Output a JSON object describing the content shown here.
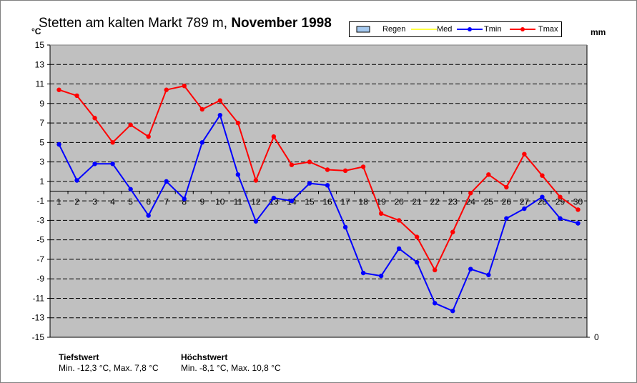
{
  "title": {
    "station": "Stetten am kalten Markt",
    "altitude": "789 m,",
    "period": "November 1998"
  },
  "units": {
    "left": "°C",
    "right": "mm"
  },
  "legend": [
    {
      "label": "Regen",
      "color": "#a6caf0"
    },
    {
      "label": "Med",
      "color": "#ffff00"
    },
    {
      "label": "Tmin",
      "color": "#0000ff"
    },
    {
      "label": "Tmax",
      "color": "#ff0000"
    }
  ],
  "footer": {
    "min_heading": "Tiefstwert",
    "min_text": "Min. -12,3 °C, Max. 7,8 °C",
    "max_heading": "Höchstwert",
    "max_text": "Min. -8,1 °C, Max. 10,8 °C"
  },
  "chart_data": {
    "type": "line",
    "x": [
      1,
      2,
      3,
      4,
      5,
      6,
      7,
      8,
      9,
      10,
      11,
      12,
      13,
      14,
      15,
      16,
      17,
      18,
      19,
      20,
      21,
      22,
      23,
      24,
      25,
      26,
      27,
      28,
      29,
      30
    ],
    "ylim": [
      -15,
      15
    ],
    "yticks": [
      15,
      13,
      11,
      9,
      7,
      5,
      3,
      1,
      -1,
      -3,
      -5,
      -7,
      -9,
      -11,
      -13,
      -15
    ],
    "y2_ticks": [
      "0"
    ],
    "grid": true,
    "background": "#c0c0c0",
    "series": [
      {
        "name": "Tmin",
        "color": "#0000ff",
        "values": [
          4.8,
          1.1,
          2.8,
          2.8,
          0.2,
          -2.5,
          1.0,
          -0.8,
          5.0,
          7.8,
          1.7,
          -3.1,
          -0.7,
          -1.0,
          0.8,
          0.6,
          -3.7,
          -8.4,
          -8.7,
          -5.9,
          -7.3,
          -11.5,
          -12.3,
          -8.0,
          -8.6,
          -2.8,
          -1.8,
          -0.6,
          -2.8,
          -3.3
        ]
      },
      {
        "name": "Tmax",
        "color": "#ff0000",
        "values": [
          10.4,
          9.8,
          7.5,
          5.0,
          6.8,
          5.6,
          10.4,
          10.8,
          8.4,
          9.3,
          7.0,
          1.1,
          5.6,
          2.7,
          3.0,
          2.2,
          2.1,
          2.5,
          -2.3,
          -3.0,
          -4.7,
          -8.1,
          -4.2,
          -0.2,
          1.7,
          0.4,
          3.8,
          1.6,
          -0.6,
          -1.9
        ]
      }
    ]
  }
}
